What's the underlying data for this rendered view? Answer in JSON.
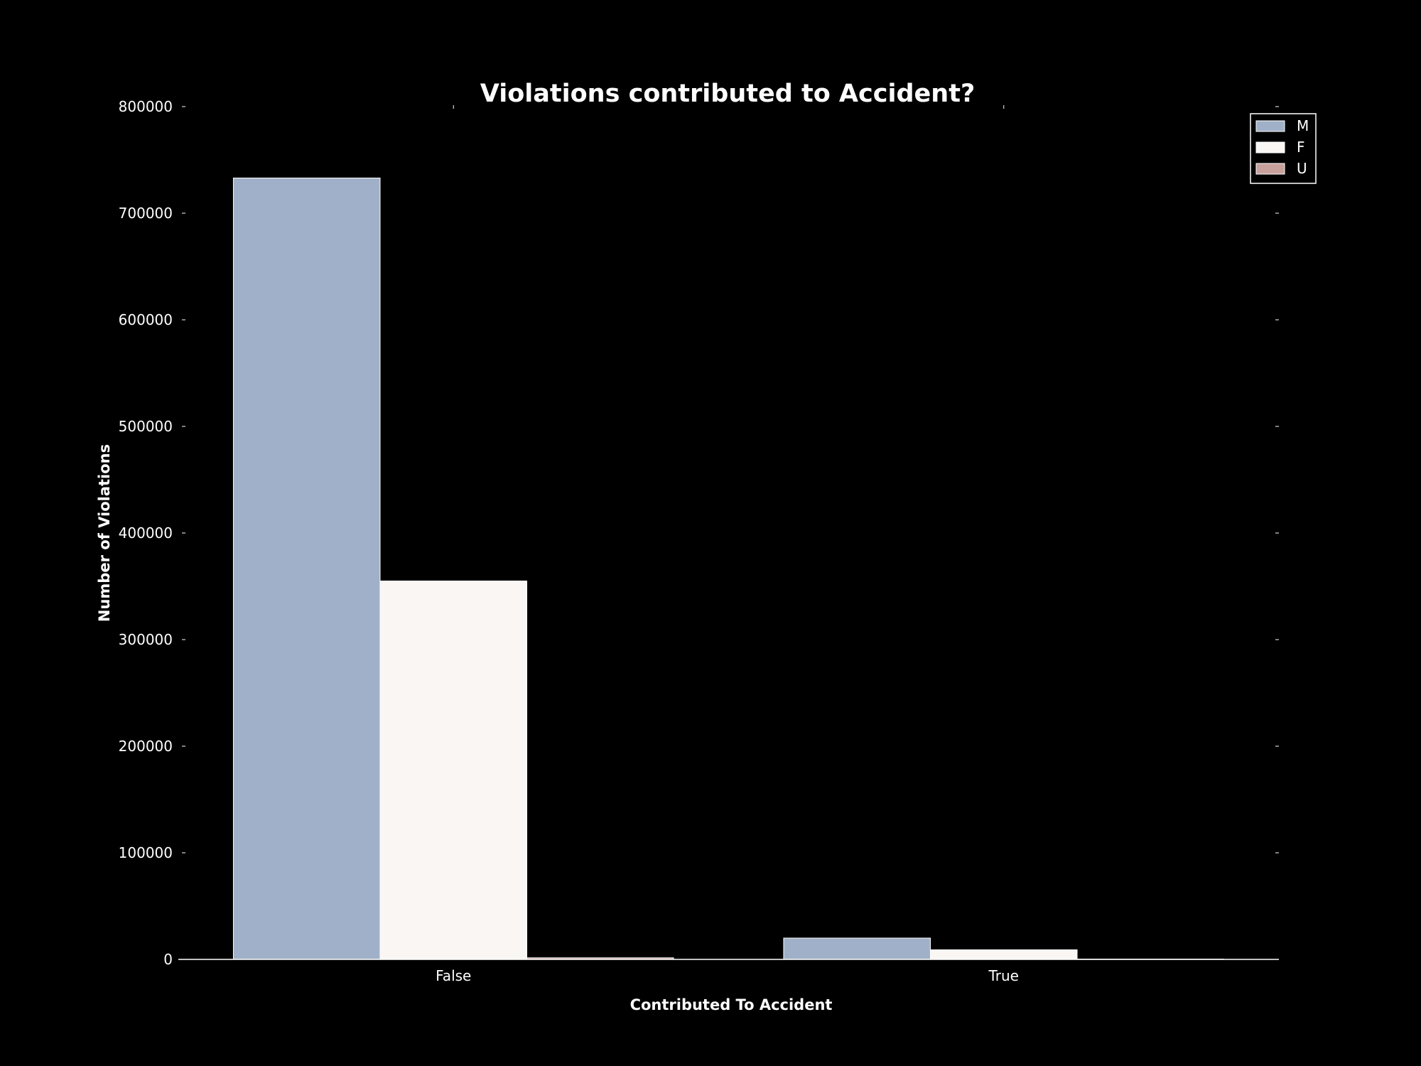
{
  "chart_data": {
    "type": "bar",
    "title": "Violations contributed to Accident?",
    "xlabel": "Contributed To Accident",
    "ylabel": "Number of Violations",
    "categories": [
      "False",
      "True"
    ],
    "series": [
      {
        "name": "M",
        "values": [
          733000,
          20000
        ],
        "color": "#a0b0c8"
      },
      {
        "name": "F",
        "values": [
          355000,
          9000
        ],
        "color": "#faf6f4"
      },
      {
        "name": "U",
        "values": [
          1500,
          300
        ],
        "color": "#c8a09c"
      }
    ],
    "ylim": [
      0,
      800000
    ],
    "yticks": [
      "0",
      "100000",
      "200000",
      "300000",
      "400000",
      "500000",
      "600000",
      "700000",
      "800000"
    ],
    "grid": false,
    "legend_position": "top-right",
    "background": "#000000",
    "text_color": "#ffffff"
  }
}
